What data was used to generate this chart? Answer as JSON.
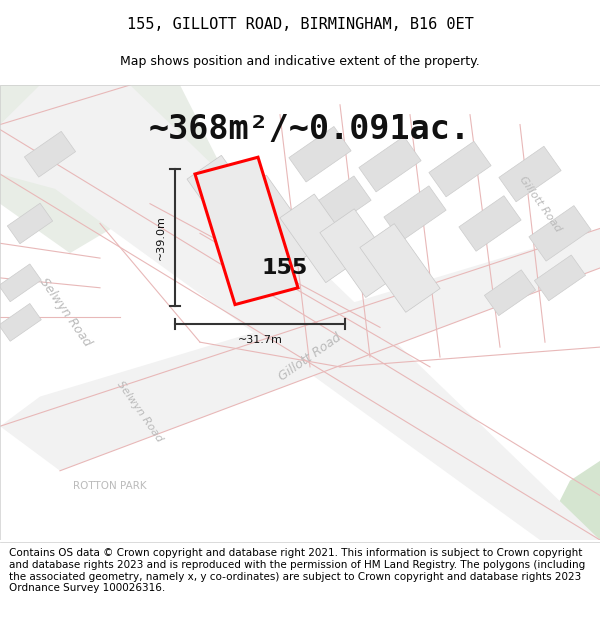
{
  "title_line1": "155, GILLOTT ROAD, BIRMINGHAM, B16 0ET",
  "title_line2": "Map shows position and indicative extent of the property.",
  "area_text": "~368m²/~0.091ac.",
  "property_number": "155",
  "dim_height": "~39.0m",
  "dim_width": "~31.7m",
  "footer_text": "Contains OS data © Crown copyright and database right 2021. This information is subject to Crown copyright and database rights 2023 and is reproduced with the permission of HM Land Registry. The polygons (including the associated geometry, namely x, y co-ordinates) are subject to Crown copyright and database rights 2023 Ordnance Survey 100026316.",
  "bg_color": "#ffffff",
  "map_bg": "#f5f5f5",
  "green_area_color": "#e8ede8",
  "road_color": "#f0c8c8",
  "building_color": "#e0e0e0",
  "road_line_color": "#e8b8b8",
  "property_fill": "#ebebeb",
  "property_border": "#ff0000",
  "dim_color": "#333333",
  "road_label_color": "#bbbbbb",
  "rotton_label_color": "#aaaaaa",
  "title_fontsize": 11,
  "subtitle_fontsize": 9,
  "area_fontsize": 24,
  "footer_fontsize": 7.5,
  "number_fontsize": 16,
  "dim_fontsize": 8,
  "road_label_fontsize": 9,
  "small_label_fontsize": 7.5
}
